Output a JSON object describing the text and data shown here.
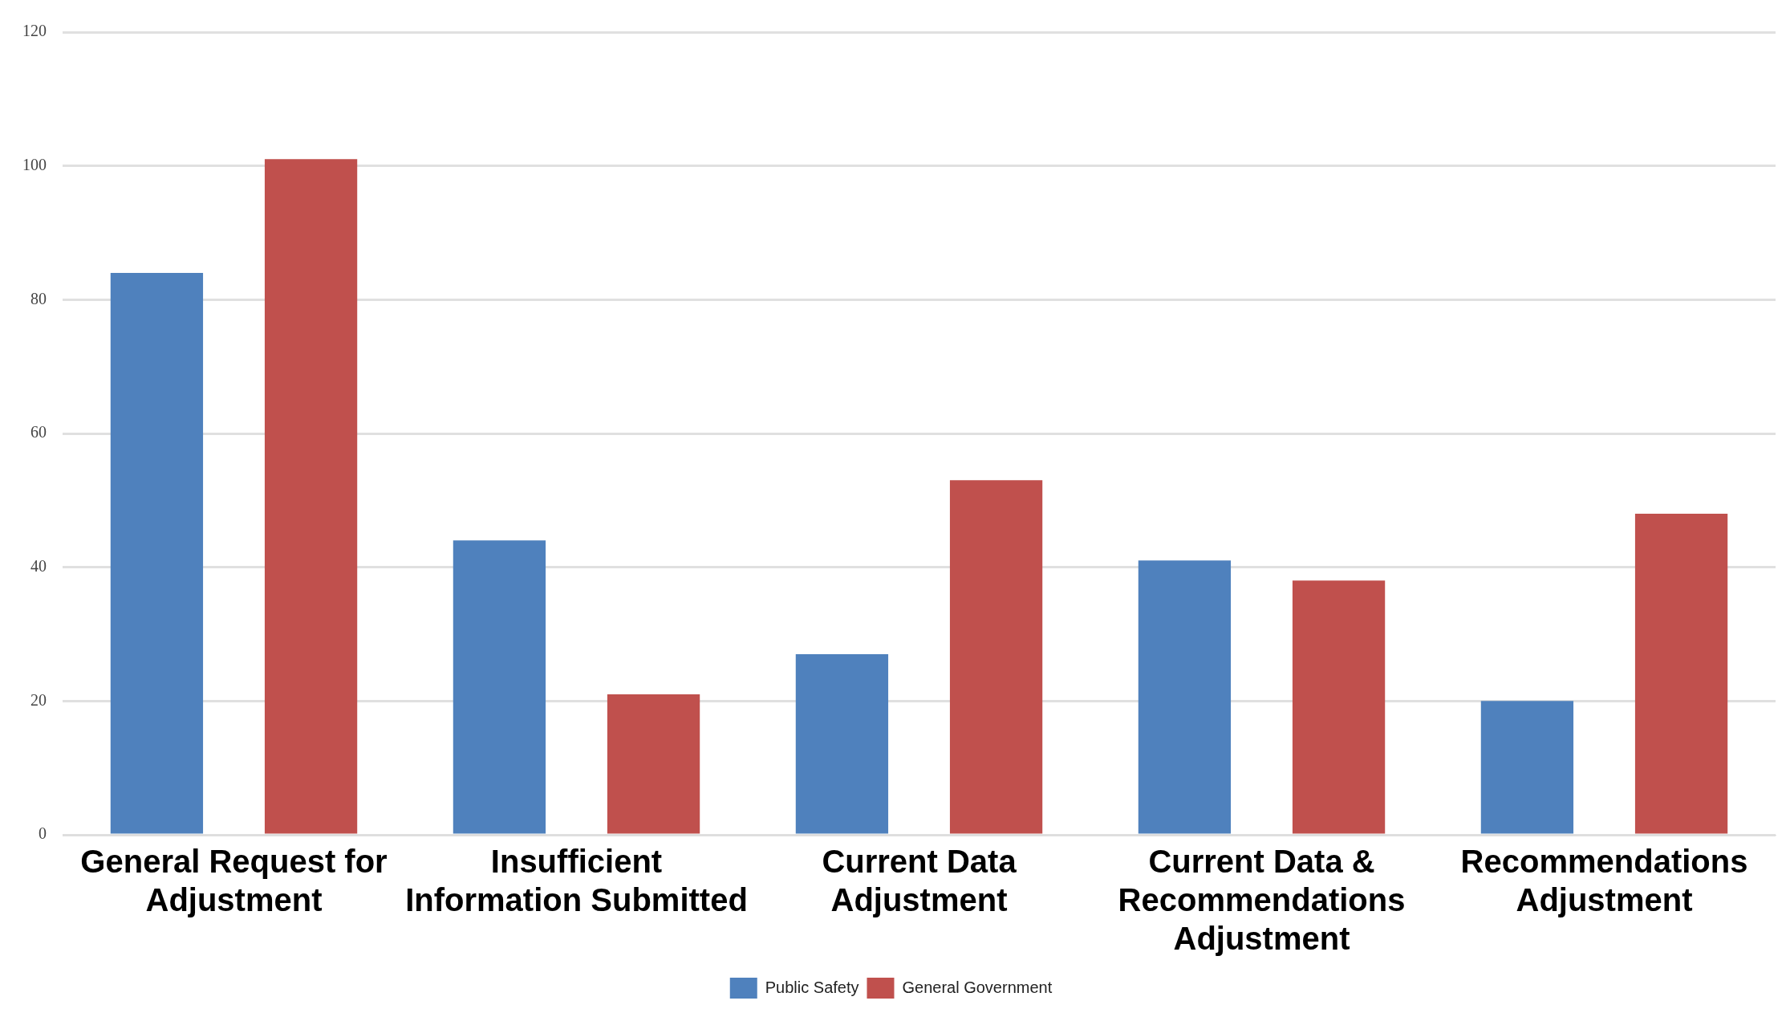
{
  "chart_data": {
    "type": "bar",
    "categories": [
      "General Request for Adjustment",
      "Insufficient Information Submitted",
      "Current Data Adjustment",
      "Current Data & Recommendations Adjustment",
      "Recommendations Adjustment"
    ],
    "series": [
      {
        "name": "Public Safety",
        "color": "#4f81bd",
        "values": [
          84,
          44,
          27,
          41,
          20
        ]
      },
      {
        "name": "General Government",
        "color": "#c0504d",
        "values": [
          101,
          21,
          53,
          38,
          48
        ]
      }
    ],
    "ylim": [
      0,
      120
    ],
    "yticks": [
      0,
      20,
      40,
      60,
      80,
      100,
      120
    ],
    "grid": "y",
    "legend": "bottom"
  }
}
